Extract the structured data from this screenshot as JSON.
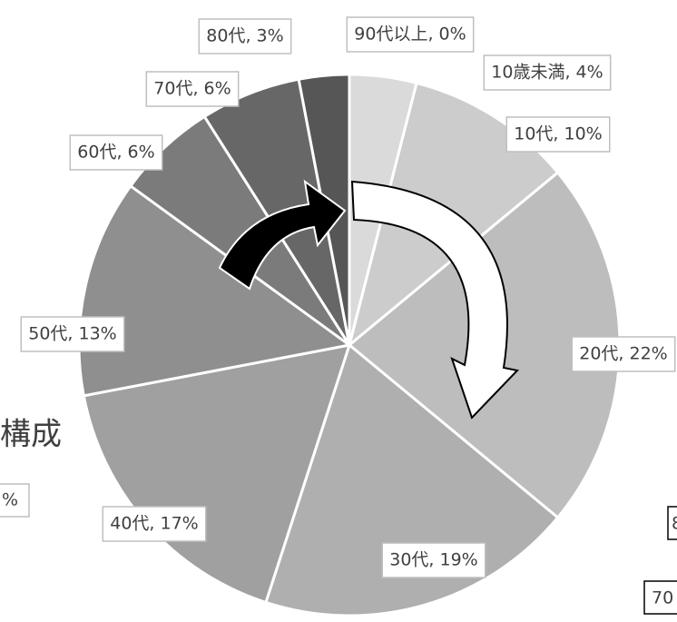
{
  "chart_data": {
    "type": "pie",
    "values": [
      4,
      10,
      22,
      19,
      17,
      13,
      6,
      6,
      3,
      0
    ],
    "value_labels": [
      "10歳未満, 4%",
      "10代, 10%",
      "20代, 22%",
      "30代, 19%",
      "40代, 17%",
      "50代, 13%",
      "60代, 6%",
      "70代, 6%",
      "80代, 3%",
      "90代以上, 0%"
    ],
    "colors": [
      "#dadada",
      "#cccccc",
      "#bdbdbd",
      "#afafaf",
      "#a0a0a0",
      "#8f8f8f",
      "#7b7b7b",
      "#676767",
      "#565656",
      "#404040"
    ],
    "annotations": [
      "構成",
      "%",
      "70",
      "8"
    ]
  }
}
